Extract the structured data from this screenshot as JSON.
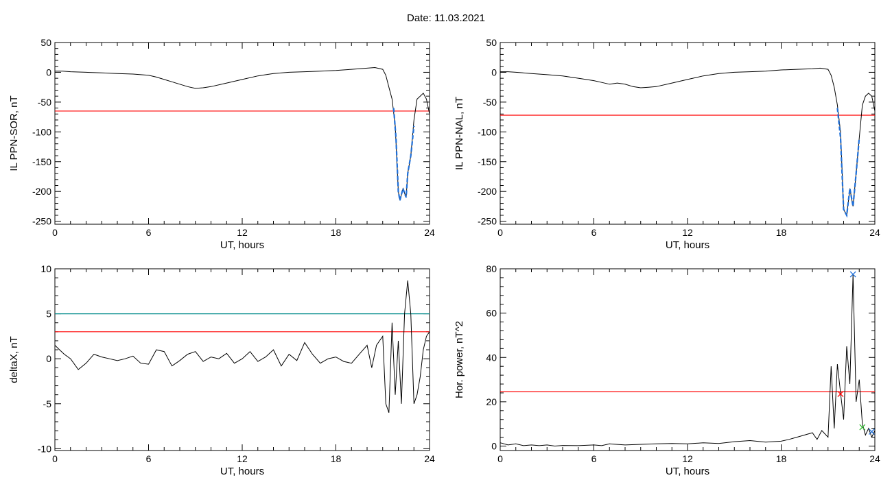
{
  "title": "Date:  11.03.2021",
  "colors": {
    "trace": "#000000",
    "threshold": "#ff0000",
    "level": "#008b8b",
    "highlight": "#1e6fd9"
  },
  "chart_data": [
    {
      "type": "line",
      "xlabel": "UT, hours",
      "ylabel": "IL PPN-SOR, nT",
      "xlim": [
        0,
        24
      ],
      "ylim": [
        -255,
        50
      ],
      "xticks": [
        0,
        6,
        12,
        18,
        24
      ],
      "yticks": [
        50,
        0,
        -50,
        -100,
        -150,
        -200,
        -250
      ],
      "threshold": -65,
      "series": [
        {
          "role": "trace",
          "x": [
            0,
            0.5,
            1,
            2,
            3,
            4,
            5,
            6,
            6.5,
            7,
            7.5,
            8,
            8.5,
            9,
            9.5,
            10,
            11,
            12,
            13,
            14,
            15,
            16,
            17,
            18,
            19,
            20,
            20.5,
            21,
            21.2,
            21.4,
            21.6,
            21.8,
            22.0,
            22.1,
            22.3,
            22.5,
            22.6,
            22.8,
            23.0,
            23.2,
            23.4,
            23.6,
            23.8,
            24
          ],
          "y": [
            2,
            2,
            1,
            0,
            -1,
            -2,
            -3,
            -5,
            -8,
            -12,
            -16,
            -20,
            -24,
            -27,
            -26,
            -24,
            -18,
            -12,
            -6,
            -2,
            0,
            1,
            2,
            3,
            5,
            7,
            8,
            5,
            -5,
            -25,
            -45,
            -90,
            -200,
            -215,
            -195,
            -210,
            -170,
            -140,
            -80,
            -45,
            -40,
            -35,
            -45,
            -70
          ]
        },
        {
          "role": "highlight",
          "x": [
            21.7,
            21.85,
            22.0,
            22.1,
            22.3,
            22.5,
            22.6,
            22.8,
            23.0
          ],
          "y": [
            -60,
            -110,
            -200,
            -215,
            -195,
            -210,
            -170,
            -140,
            -90
          ]
        }
      ]
    },
    {
      "type": "line",
      "xlabel": "UT, hours",
      "ylabel": "IL PPN-NAL, nT",
      "xlim": [
        0,
        24
      ],
      "ylim": [
        -255,
        50
      ],
      "xticks": [
        0,
        6,
        12,
        18,
        24
      ],
      "yticks": [
        50,
        0,
        -50,
        -100,
        -150,
        -200,
        -250
      ],
      "threshold": -72,
      "series": [
        {
          "role": "trace",
          "x": [
            0,
            0.5,
            1,
            2,
            3,
            4,
            5,
            6,
            6.5,
            7,
            7.5,
            8,
            8.5,
            9,
            9.5,
            10,
            11,
            12,
            13,
            14,
            15,
            16,
            17,
            18,
            19,
            20,
            20.5,
            21,
            21.2,
            21.4,
            21.6,
            21.8,
            22.0,
            22.2,
            22.4,
            22.6,
            22.8,
            23.0,
            23.2,
            23.4,
            23.6,
            23.8,
            24
          ],
          "y": [
            1,
            1,
            0,
            -2,
            -4,
            -6,
            -10,
            -14,
            -17,
            -20,
            -18,
            -20,
            -24,
            -26,
            -25,
            -24,
            -18,
            -12,
            -6,
            -2,
            0,
            1,
            2,
            4,
            5,
            6,
            7,
            5,
            -5,
            -25,
            -55,
            -100,
            -230,
            -240,
            -195,
            -225,
            -170,
            -110,
            -55,
            -40,
            -35,
            -40,
            -65
          ]
        },
        {
          "role": "highlight",
          "x": [
            21.6,
            21.8,
            22.0,
            22.2,
            22.4,
            22.6,
            22.8,
            23.0
          ],
          "y": [
            -60,
            -110,
            -230,
            -240,
            -195,
            -225,
            -170,
            -110
          ]
        }
      ]
    },
    {
      "type": "line",
      "xlabel": "UT, hours",
      "ylabel": "deltaX, nT",
      "xlim": [
        0,
        24
      ],
      "ylim": [
        -10.2,
        10
      ],
      "xticks": [
        0,
        6,
        12,
        18,
        24
      ],
      "yticks": [
        10,
        5,
        0,
        -5,
        -10
      ],
      "threshold": 3,
      "level": 5,
      "series": [
        {
          "role": "trace",
          "x": [
            0,
            0.3,
            0.6,
            1,
            1.5,
            2,
            2.5,
            3,
            3.5,
            4,
            4.5,
            5,
            5.5,
            6,
            6.5,
            7,
            7.5,
            8,
            8.5,
            9,
            9.5,
            10,
            10.5,
            11,
            11.5,
            12,
            12.5,
            13,
            13.5,
            14,
            14.5,
            15,
            15.5,
            16,
            16.5,
            17,
            17.5,
            18,
            18.5,
            19,
            19.5,
            20,
            20.3,
            20.6,
            21,
            21.2,
            21.4,
            21.6,
            21.8,
            22.0,
            22.2,
            22.4,
            22.6,
            22.8,
            23.0,
            23.2,
            23.4,
            23.6,
            23.8,
            24
          ],
          "y": [
            1.5,
            1,
            0.5,
            0,
            -1.2,
            -0.5,
            0.5,
            0.2,
            0,
            -0.2,
            0,
            0.3,
            -0.5,
            -0.6,
            1,
            0.8,
            -0.8,
            -0.2,
            0.5,
            0.8,
            -0.3,
            0.2,
            0,
            0.6,
            -0.5,
            0,
            0.8,
            -0.3,
            0.2,
            1,
            -0.8,
            0.5,
            -0.2,
            1.8,
            0.5,
            -0.5,
            0,
            0.2,
            -0.3,
            -0.5,
            0.5,
            1.5,
            -1,
            1.5,
            2.5,
            -5,
            -6,
            4,
            -4,
            2,
            -5,
            5,
            8.7,
            5,
            -5,
            -4,
            -2,
            1,
            2.5,
            3
          ]
        }
      ]
    },
    {
      "type": "line",
      "xlabel": "UT, hours",
      "ylabel": "Hor. power, nT^2",
      "xlim": [
        0,
        24
      ],
      "ylim": [
        -2,
        80
      ],
      "xticks": [
        0,
        6,
        12,
        18,
        24
      ],
      "yticks": [
        80,
        60,
        40,
        20,
        0
      ],
      "threshold": 24.5,
      "markers": [
        {
          "x": 22.6,
          "y": 77.5,
          "color": "#1e6fd9"
        },
        {
          "x": 21.8,
          "y": 23.5,
          "color": "#ff0000"
        },
        {
          "x": 23.2,
          "y": 8.5,
          "color": "#2fb82f"
        },
        {
          "x": 23.8,
          "y": 6.5,
          "color": "#1e6fd9"
        }
      ],
      "series": [
        {
          "role": "trace",
          "x": [
            0,
            0.5,
            1,
            1.5,
            2,
            2.5,
            3,
            3.5,
            4,
            5,
            6,
            6.5,
            7,
            8,
            9,
            10,
            11,
            12,
            13,
            14,
            15,
            16,
            17,
            18,
            18.5,
            19,
            19.5,
            20,
            20.3,
            20.6,
            21,
            21.2,
            21.4,
            21.6,
            21.8,
            22.0,
            22.2,
            22.4,
            22.6,
            22.8,
            23.0,
            23.2,
            23.4,
            23.6,
            23.8,
            24
          ],
          "y": [
            1.5,
            0.5,
            1,
            0.2,
            0.5,
            0.2,
            0.5,
            0,
            0.3,
            0.2,
            0.5,
            0.2,
            1,
            0.5,
            0.8,
            1,
            1.2,
            1,
            1.5,
            1.2,
            2,
            2.5,
            1.8,
            2.2,
            3,
            4,
            5,
            6,
            3,
            7,
            4,
            36,
            8,
            37,
            24,
            12,
            45,
            28,
            77.5,
            20,
            30,
            10,
            5,
            8,
            4,
            7
          ]
        }
      ]
    }
  ]
}
